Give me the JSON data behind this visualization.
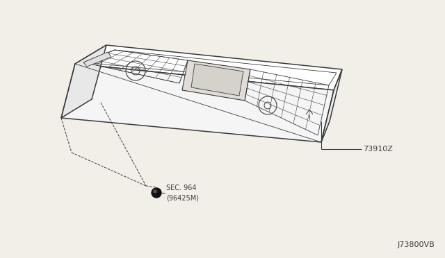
{
  "background_color": "#f2efe9",
  "line_color": "#3a3a3a",
  "title_code": "J73800VB",
  "part_label_1": "73910Z",
  "part_label_2_line1": "SEC. 964",
  "part_label_2_line2": "(96425M)",
  "fig_width": 6.4,
  "fig_height": 3.72,
  "dpi": 100
}
